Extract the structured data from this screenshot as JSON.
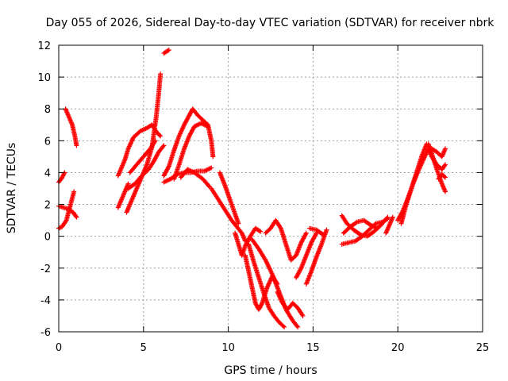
{
  "chart_data": {
    "type": "scatter",
    "title": "Day 055 of 2026, Sidereal Day-to-day VTEC variation (SDTVAR) for receiver nbrk",
    "xlabel": "GPS time / hours",
    "ylabel": "SDTVAR / TECUs",
    "xlim": [
      0,
      25
    ],
    "ylim": [
      -6,
      12
    ],
    "xticks": [
      0,
      5,
      10,
      15,
      20,
      25
    ],
    "yticks": [
      -6,
      -4,
      -2,
      0,
      2,
      4,
      6,
      8,
      10,
      12
    ],
    "grid": true,
    "marker": "plus",
    "color": "#ff0000",
    "tracks": [
      [
        [
          0.0,
          0.5
        ],
        [
          0.2,
          0.6
        ],
        [
          0.45,
          1.0
        ],
        [
          0.7,
          2.0
        ],
        [
          0.9,
          2.8
        ]
      ],
      [
        [
          0.0,
          1.9
        ],
        [
          0.3,
          1.8
        ],
        [
          0.6,
          1.7
        ],
        [
          0.85,
          1.5
        ],
        [
          1.05,
          1.2
        ]
      ],
      [
        [
          0.0,
          3.4
        ],
        [
          0.15,
          3.6
        ],
        [
          0.35,
          4.0
        ]
      ],
      [
        [
          0.4,
          8.0
        ],
        [
          0.6,
          7.5
        ],
        [
          0.8,
          7.0
        ],
        [
          0.95,
          6.3
        ],
        [
          1.05,
          5.7
        ]
      ],
      [
        [
          3.5,
          1.8
        ],
        [
          3.7,
          2.3
        ],
        [
          3.9,
          2.8
        ],
        [
          4.1,
          3.3
        ]
      ],
      [
        [
          3.5,
          3.8
        ],
        [
          3.7,
          4.3
        ],
        [
          3.9,
          4.8
        ],
        [
          4.1,
          5.5
        ],
        [
          4.4,
          6.2
        ],
        [
          4.8,
          6.6
        ],
        [
          5.2,
          6.8
        ],
        [
          5.5,
          7.0
        ],
        [
          5.8,
          6.5
        ],
        [
          6.0,
          6.3
        ]
      ],
      [
        [
          4.0,
          1.5
        ],
        [
          4.4,
          2.5
        ],
        [
          4.8,
          3.5
        ],
        [
          5.2,
          4.5
        ],
        [
          5.5,
          5.6
        ],
        [
          5.75,
          7.5
        ],
        [
          5.9,
          9.0
        ],
        [
          6.0,
          10.2
        ]
      ],
      [
        [
          4.1,
          3.0
        ],
        [
          4.5,
          3.3
        ],
        [
          4.9,
          3.8
        ],
        [
          5.3,
          4.2
        ],
        [
          5.6,
          4.7
        ],
        [
          5.9,
          5.3
        ],
        [
          6.2,
          5.7
        ]
      ],
      [
        [
          4.2,
          4.0
        ],
        [
          4.6,
          4.5
        ],
        [
          5.0,
          5.0
        ],
        [
          5.4,
          5.5
        ],
        [
          5.7,
          6.0
        ]
      ],
      [
        [
          6.2,
          11.5
        ],
        [
          6.5,
          11.7
        ]
      ],
      [
        [
          6.2,
          3.4
        ],
        [
          6.6,
          3.6
        ],
        [
          7.0,
          3.9
        ],
        [
          7.4,
          4.0
        ],
        [
          7.8,
          4.0
        ],
        [
          8.2,
          4.1
        ],
        [
          8.6,
          4.1
        ],
        [
          9.0,
          4.3
        ]
      ],
      [
        [
          6.2,
          3.8
        ],
        [
          6.5,
          4.4
        ],
        [
          6.8,
          5.4
        ],
        [
          7.1,
          6.3
        ],
        [
          7.4,
          7.0
        ],
        [
          7.7,
          7.6
        ],
        [
          7.9,
          8.0
        ],
        [
          8.2,
          7.6
        ],
        [
          8.5,
          7.3
        ],
        [
          8.8,
          7.0
        ],
        [
          9.0,
          6.0
        ],
        [
          9.1,
          5.0
        ]
      ],
      [
        [
          6.8,
          3.6
        ],
        [
          7.1,
          4.5
        ],
        [
          7.4,
          5.5
        ],
        [
          7.7,
          6.3
        ],
        [
          8.0,
          6.9
        ],
        [
          8.4,
          7.1
        ],
        [
          8.8,
          6.9
        ]
      ],
      [
        [
          7.2,
          3.7
        ],
        [
          7.6,
          4.2
        ],
        [
          8.0,
          4.0
        ],
        [
          8.5,
          3.6
        ],
        [
          8.9,
          3.1
        ]
      ],
      [
        [
          9.0,
          3.0
        ],
        [
          9.3,
          2.5
        ],
        [
          9.6,
          2.0
        ],
        [
          9.9,
          1.5
        ],
        [
          10.2,
          1.0
        ],
        [
          10.5,
          0.6
        ],
        [
          10.8,
          0.2
        ],
        [
          11.0,
          -0.3
        ]
      ],
      [
        [
          9.5,
          4.0
        ],
        [
          9.8,
          3.2
        ],
        [
          10.1,
          2.3
        ],
        [
          10.4,
          1.4
        ],
        [
          10.6,
          0.8
        ]
      ],
      [
        [
          10.4,
          0.2
        ],
        [
          10.6,
          -0.5
        ],
        [
          10.8,
          -1.2
        ],
        [
          11.0,
          -0.6
        ],
        [
          11.3,
          0.0
        ],
        [
          11.6,
          0.5
        ],
        [
          11.9,
          0.3
        ]
      ],
      [
        [
          11.0,
          -1.2
        ],
        [
          11.2,
          -2.2
        ],
        [
          11.4,
          -3.2
        ],
        [
          11.6,
          -4.2
        ],
        [
          11.8,
          -4.6
        ],
        [
          12.0,
          -4.2
        ],
        [
          12.3,
          -3.2
        ],
        [
          12.6,
          -2.5
        ],
        [
          12.9,
          -3.0
        ]
      ],
      [
        [
          11.2,
          -0.5
        ],
        [
          11.5,
          -1.6
        ],
        [
          11.8,
          -2.6
        ],
        [
          12.1,
          -3.6
        ],
        [
          12.4,
          -4.5
        ],
        [
          12.7,
          -5.0
        ],
        [
          13.0,
          -5.4
        ],
        [
          13.3,
          -5.7
        ]
      ],
      [
        [
          11.4,
          -0.2
        ],
        [
          11.8,
          -0.8
        ],
        [
          12.2,
          -1.5
        ],
        [
          12.6,
          -2.4
        ],
        [
          13.0,
          -3.5
        ],
        [
          13.4,
          -4.6
        ],
        [
          13.8,
          -5.3
        ],
        [
          14.1,
          -5.7
        ]
      ],
      [
        [
          12.2,
          0.2
        ],
        [
          12.5,
          0.5
        ],
        [
          12.8,
          1.0
        ],
        [
          13.1,
          0.5
        ],
        [
          13.4,
          -0.5
        ],
        [
          13.7,
          -1.5
        ],
        [
          14.0,
          -1.2
        ],
        [
          14.3,
          -0.4
        ],
        [
          14.6,
          0.2
        ]
      ],
      [
        [
          12.9,
          -3.5
        ],
        [
          13.2,
          -4.2
        ],
        [
          13.5,
          -4.6
        ],
        [
          13.8,
          -4.2
        ],
        [
          14.1,
          -4.5
        ],
        [
          14.4,
          -5.0
        ]
      ],
      [
        [
          14.0,
          -2.6
        ],
        [
          14.3,
          -2.0
        ],
        [
          14.6,
          -1.2
        ],
        [
          14.9,
          -0.4
        ],
        [
          15.2,
          0.2
        ]
      ],
      [
        [
          14.6,
          -3.0
        ],
        [
          14.9,
          -2.2
        ],
        [
          15.2,
          -1.3
        ],
        [
          15.5,
          -0.5
        ],
        [
          15.8,
          0.4
        ]
      ],
      [
        [
          14.8,
          0.5
        ],
        [
          15.2,
          0.4
        ],
        [
          15.6,
          0.1
        ]
      ],
      [
        [
          16.7,
          1.3
        ],
        [
          17.0,
          0.8
        ],
        [
          17.4,
          0.4
        ],
        [
          17.8,
          0.1
        ],
        [
          18.2,
          0.0
        ],
        [
          18.6,
          0.3
        ],
        [
          19.0,
          0.7
        ],
        [
          19.4,
          1.2
        ]
      ],
      [
        [
          16.7,
          -0.5
        ],
        [
          17.1,
          -0.4
        ],
        [
          17.5,
          -0.3
        ],
        [
          17.9,
          0.0
        ],
        [
          18.3,
          0.4
        ],
        [
          18.7,
          0.8
        ],
        [
          19.1,
          0.9
        ],
        [
          19.4,
          1.1
        ]
      ],
      [
        [
          16.8,
          0.2
        ],
        [
          17.2,
          0.6
        ],
        [
          17.6,
          0.9
        ],
        [
          18.0,
          1.0
        ],
        [
          18.4,
          0.7
        ],
        [
          18.8,
          0.5
        ]
      ],
      [
        [
          19.3,
          0.2
        ],
        [
          19.5,
          0.7
        ],
        [
          19.7,
          1.2
        ]
      ],
      [
        [
          20.0,
          1.0
        ],
        [
          20.3,
          1.6
        ],
        [
          20.6,
          2.4
        ],
        [
          20.9,
          3.3
        ],
        [
          21.2,
          4.1
        ],
        [
          21.5,
          4.8
        ],
        [
          21.8,
          5.5
        ],
        [
          22.0,
          5.0
        ],
        [
          22.3,
          4.5
        ],
        [
          22.6,
          4.2
        ],
        [
          22.8,
          4.5
        ]
      ],
      [
        [
          20.2,
          0.8
        ],
        [
          20.5,
          2.0
        ],
        [
          20.8,
          3.0
        ],
        [
          21.1,
          4.0
        ],
        [
          21.4,
          5.0
        ],
        [
          21.7,
          5.8
        ]
      ],
      [
        [
          21.8,
          5.8
        ],
        [
          22.0,
          5.2
        ],
        [
          22.3,
          4.2
        ],
        [
          22.6,
          3.3
        ],
        [
          22.8,
          2.8
        ]
      ],
      [
        [
          22.0,
          5.5
        ],
        [
          22.3,
          5.3
        ],
        [
          22.6,
          5.0
        ],
        [
          22.8,
          5.5
        ]
      ],
      [
        [
          22.4,
          3.6
        ],
        [
          22.6,
          3.9
        ],
        [
          22.8,
          3.7
        ]
      ]
    ]
  }
}
